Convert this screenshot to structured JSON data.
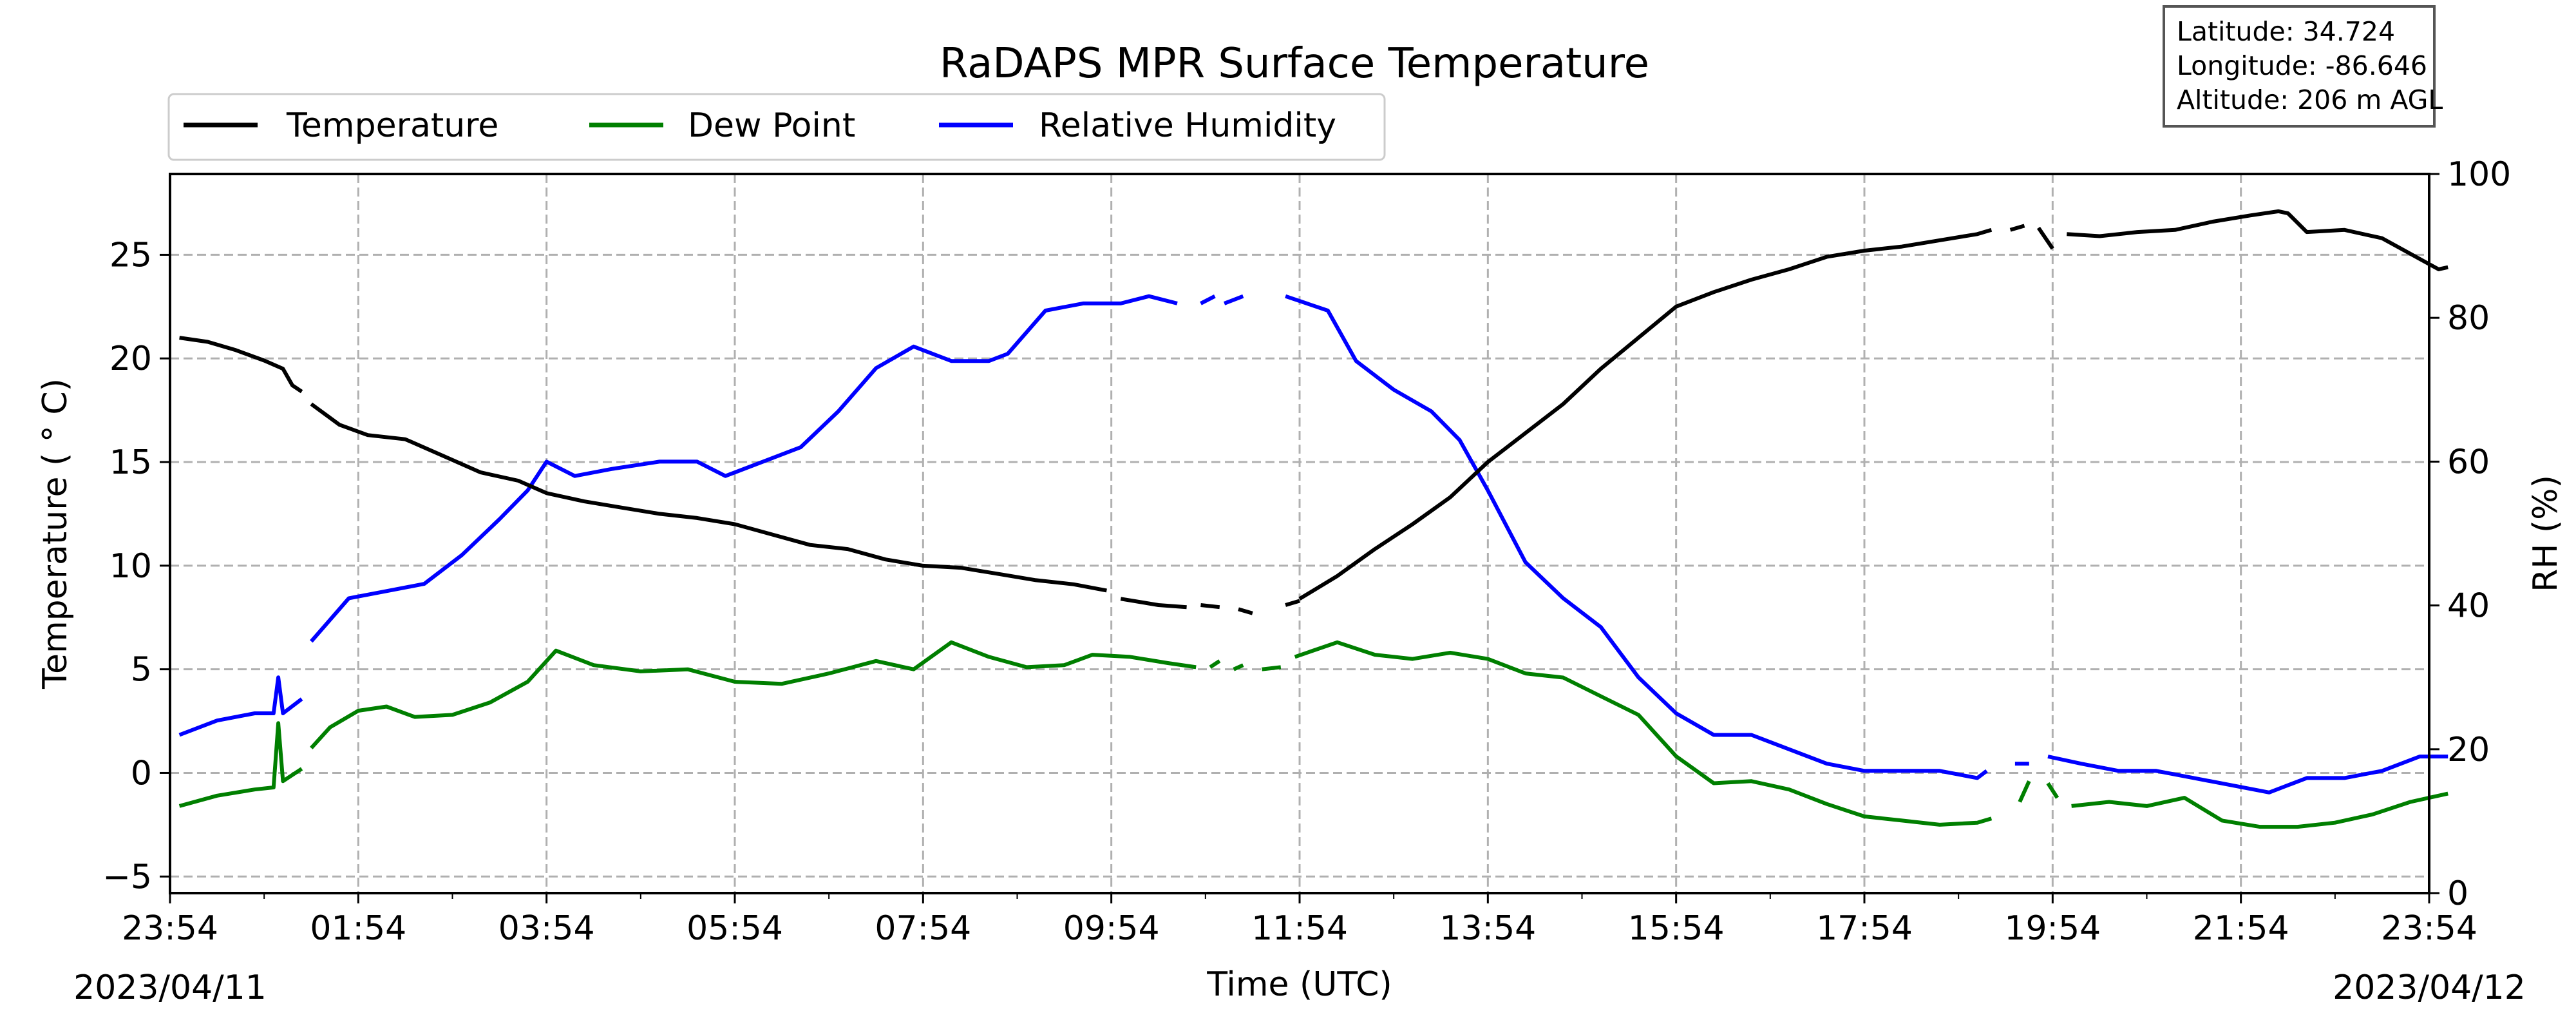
{
  "chart_data": {
    "type": "line",
    "title": "RaDAPS MPR Surface Temperature",
    "xlabel": "Time (UTC)",
    "ylabel_left": "Temperature ($^\\circ$C)",
    "ylabel_left_display": "Temperature ( ° C)",
    "ylabel_right": "RH (%)",
    "x_unit": "hours since 2023/04/11 23:54 UTC",
    "x_range": [
      0,
      24
    ],
    "x_ticks": [
      0,
      2,
      4,
      6,
      8,
      10,
      12,
      14,
      16,
      18,
      20,
      22,
      24
    ],
    "x_tick_labels": [
      "23:54",
      "01:54",
      "03:54",
      "05:54",
      "07:54",
      "09:54",
      "11:54",
      "13:54",
      "15:54",
      "17:54",
      "19:54",
      "21:54",
      "23:54"
    ],
    "date_start": "2023/04/11",
    "date_end": "2023/04/12",
    "ylim_left": [
      -5.8,
      28.9
    ],
    "yticks_left": [
      -5,
      0,
      5,
      10,
      15,
      20,
      25
    ],
    "ylim_right": [
      0,
      100
    ],
    "yticks_right": [
      0,
      20,
      40,
      60,
      80,
      100
    ],
    "grid": true,
    "legend_position": "top-left",
    "series": [
      {
        "name": "Temperature",
        "axis": "left",
        "color": "#000000",
        "segments": [
          [
            [
              0.1,
              21.0
            ],
            [
              0.4,
              20.8
            ],
            [
              0.7,
              20.4
            ],
            [
              1.0,
              19.9
            ],
            [
              1.2,
              19.5
            ],
            [
              1.3,
              18.7
            ],
            [
              1.4,
              18.4
            ]
          ],
          [
            [
              1.5,
              17.8
            ],
            [
              1.8,
              16.8
            ],
            [
              2.1,
              16.3
            ],
            [
              2.5,
              16.1
            ],
            [
              2.9,
              15.3
            ],
            [
              3.3,
              14.5
            ],
            [
              3.7,
              14.1
            ],
            [
              4.0,
              13.5
            ],
            [
              4.4,
              13.1
            ],
            [
              4.8,
              12.8
            ],
            [
              5.2,
              12.5
            ],
            [
              5.6,
              12.3
            ],
            [
              6.0,
              12.0
            ],
            [
              6.4,
              11.5
            ],
            [
              6.8,
              11.0
            ],
            [
              7.2,
              10.8
            ],
            [
              7.6,
              10.3
            ],
            [
              8.0,
              10.0
            ],
            [
              8.4,
              9.9
            ],
            [
              8.8,
              9.6
            ],
            [
              9.2,
              9.3
            ],
            [
              9.6,
              9.1
            ],
            [
              9.95,
              8.8
            ]
          ],
          [
            [
              10.1,
              8.4
            ],
            [
              10.5,
              8.1
            ],
            [
              10.8,
              8.0
            ]
          ],
          [
            [
              10.95,
              8.1
            ],
            [
              11.15,
              8.0
            ]
          ],
          [
            [
              11.35,
              7.9
            ],
            [
              11.5,
              7.7
            ]
          ],
          [
            [
              11.85,
              8.1
            ],
            [
              12.0,
              8.3
            ]
          ],
          [
            [
              12.0,
              8.4
            ],
            [
              12.4,
              9.5
            ],
            [
              12.8,
              10.8
            ],
            [
              13.2,
              12.0
            ],
            [
              13.6,
              13.3
            ],
            [
              14.0,
              15.0
            ],
            [
              14.4,
              16.4
            ],
            [
              14.8,
              17.8
            ],
            [
              15.2,
              19.5
            ],
            [
              15.6,
              21.0
            ],
            [
              16.0,
              22.5
            ],
            [
              16.4,
              23.2
            ],
            [
              16.8,
              23.8
            ],
            [
              17.2,
              24.3
            ],
            [
              17.6,
              24.9
            ],
            [
              18.0,
              25.2
            ],
            [
              18.4,
              25.4
            ],
            [
              18.8,
              25.7
            ],
            [
              19.2,
              26.0
            ],
            [
              19.35,
              26.2
            ]
          ],
          [
            [
              19.55,
              26.2
            ],
            [
              19.7,
              26.4
            ]
          ],
          [
            [
              19.85,
              26.3
            ],
            [
              20.0,
              25.3
            ]
          ],
          [
            [
              20.15,
              26.0
            ],
            [
              20.5,
              25.9
            ],
            [
              20.9,
              26.1
            ],
            [
              21.3,
              26.2
            ],
            [
              21.7,
              26.6
            ],
            [
              22.1,
              26.9
            ],
            [
              22.4,
              27.1
            ],
            [
              22.5,
              27.0
            ],
            [
              22.7,
              26.1
            ],
            [
              23.1,
              26.2
            ],
            [
              23.5,
              25.8
            ],
            [
              23.9,
              24.8
            ],
            [
              24.1,
              24.3
            ],
            [
              24.2,
              24.4
            ]
          ]
        ]
      },
      {
        "name": "Dew Point",
        "axis": "left",
        "color": "#007f00",
        "segments": [
          [
            [
              0.1,
              -1.6
            ],
            [
              0.5,
              -1.1
            ],
            [
              0.9,
              -0.8
            ],
            [
              1.1,
              -0.7
            ],
            [
              1.15,
              2.4
            ],
            [
              1.2,
              -0.4
            ],
            [
              1.4,
              0.2
            ]
          ],
          [
            [
              1.5,
              1.2
            ],
            [
              1.7,
              2.2
            ],
            [
              2.0,
              3.0
            ],
            [
              2.3,
              3.2
            ],
            [
              2.6,
              2.7
            ],
            [
              3.0,
              2.8
            ],
            [
              3.4,
              3.4
            ],
            [
              3.8,
              4.4
            ],
            [
              4.1,
              5.9
            ],
            [
              4.5,
              5.2
            ],
            [
              5.0,
              4.9
            ],
            [
              5.5,
              5.0
            ],
            [
              6.0,
              4.4
            ],
            [
              6.5,
              4.3
            ],
            [
              7.0,
              4.8
            ],
            [
              7.5,
              5.4
            ],
            [
              7.9,
              5.0
            ],
            [
              8.3,
              6.3
            ],
            [
              8.7,
              5.6
            ],
            [
              9.1,
              5.1
            ],
            [
              9.5,
              5.2
            ],
            [
              9.8,
              5.7
            ],
            [
              10.2,
              5.6
            ],
            [
              10.6,
              5.3
            ],
            [
              10.9,
              5.1
            ]
          ],
          [
            [
              11.05,
              5.1
            ],
            [
              11.15,
              5.4
            ]
          ],
          [
            [
              11.3,
              5.0
            ],
            [
              11.4,
              5.2
            ]
          ],
          [
            [
              11.6,
              5.0
            ],
            [
              11.8,
              5.1
            ]
          ],
          [
            [
              11.95,
              5.6
            ],
            [
              12.4,
              6.3
            ],
            [
              12.8,
              5.7
            ],
            [
              13.2,
              5.5
            ],
            [
              13.6,
              5.8
            ],
            [
              14.0,
              5.5
            ],
            [
              14.4,
              4.8
            ],
            [
              14.8,
              4.6
            ],
            [
              15.2,
              3.7
            ],
            [
              15.6,
              2.8
            ],
            [
              16.0,
              0.8
            ],
            [
              16.4,
              -0.5
            ],
            [
              16.8,
              -0.4
            ],
            [
              17.2,
              -0.8
            ],
            [
              17.6,
              -1.5
            ],
            [
              18.0,
              -2.1
            ],
            [
              18.4,
              -2.3
            ],
            [
              18.8,
              -2.5
            ],
            [
              19.2,
              -2.4
            ],
            [
              19.35,
              -2.2
            ]
          ],
          [
            [
              19.65,
              -1.4
            ],
            [
              19.75,
              -0.4
            ]
          ],
          [
            [
              19.95,
              -0.5
            ],
            [
              20.05,
              -1.2
            ]
          ],
          [
            [
              20.2,
              -1.6
            ],
            [
              20.6,
              -1.4
            ],
            [
              21.0,
              -1.6
            ],
            [
              21.4,
              -1.2
            ],
            [
              21.8,
              -2.3
            ],
            [
              22.2,
              -2.6
            ],
            [
              22.6,
              -2.6
            ],
            [
              23.0,
              -2.4
            ],
            [
              23.4,
              -2.0
            ],
            [
              23.8,
              -1.4
            ],
            [
              24.2,
              -1.0
            ]
          ]
        ]
      },
      {
        "name": "Relative Humidity",
        "axis": "right",
        "color": "#0000ff",
        "segments": [
          [
            [
              0.1,
              22
            ],
            [
              0.5,
              24
            ],
            [
              0.9,
              25
            ],
            [
              1.1,
              25
            ],
            [
              1.15,
              30
            ],
            [
              1.2,
              25
            ],
            [
              1.4,
              27
            ]
          ],
          [
            [
              1.5,
              35
            ],
            [
              1.9,
              41
            ],
            [
              2.3,
              42
            ],
            [
              2.7,
              43
            ],
            [
              3.1,
              47
            ],
            [
              3.5,
              52
            ],
            [
              3.8,
              56
            ],
            [
              4.0,
              60
            ],
            [
              4.3,
              58
            ],
            [
              4.7,
              59
            ],
            [
              5.2,
              60
            ],
            [
              5.6,
              60
            ],
            [
              5.9,
              58
            ],
            [
              6.3,
              60
            ],
            [
              6.7,
              62
            ],
            [
              7.1,
              67
            ],
            [
              7.5,
              73
            ],
            [
              7.9,
              76
            ],
            [
              8.3,
              74
            ],
            [
              8.7,
              74
            ],
            [
              8.9,
              75
            ],
            [
              9.3,
              81
            ],
            [
              9.7,
              82
            ],
            [
              10.1,
              82
            ],
            [
              10.4,
              83
            ],
            [
              10.7,
              82
            ]
          ],
          [
            [
              10.95,
              82
            ],
            [
              11.1,
              83
            ]
          ],
          [
            [
              11.2,
              82
            ],
            [
              11.4,
              83
            ]
          ],
          [
            [
              11.85,
              83
            ],
            [
              12.3,
              81
            ],
            [
              12.6,
              74
            ],
            [
              13.0,
              70
            ],
            [
              13.4,
              67
            ],
            [
              13.7,
              63
            ],
            [
              14.0,
              56
            ],
            [
              14.4,
              46
            ],
            [
              14.8,
              41
            ],
            [
              15.2,
              37
            ],
            [
              15.6,
              30
            ],
            [
              16.0,
              25
            ],
            [
              16.4,
              22
            ],
            [
              16.8,
              22
            ],
            [
              17.2,
              20
            ],
            [
              17.6,
              18
            ],
            [
              18.0,
              17
            ],
            [
              18.4,
              17
            ],
            [
              18.8,
              17
            ],
            [
              19.2,
              16
            ],
            [
              19.3,
              17
            ]
          ],
          [
            [
              19.6,
              18
            ],
            [
              19.75,
              18
            ]
          ],
          [
            [
              19.95,
              19
            ],
            [
              20.3,
              18
            ],
            [
              20.7,
              17
            ],
            [
              21.1,
              17
            ],
            [
              21.5,
              16
            ],
            [
              21.9,
              15
            ],
            [
              22.3,
              14
            ],
            [
              22.7,
              16
            ],
            [
              23.1,
              16
            ],
            [
              23.5,
              17
            ],
            [
              23.9,
              19
            ],
            [
              24.2,
              19
            ]
          ]
        ]
      }
    ],
    "annotation": {
      "lines": [
        "Latitude: 34.724",
        "Longitude: -86.646",
        "Altitude: 206 m AGL"
      ],
      "position": "top-right"
    }
  }
}
